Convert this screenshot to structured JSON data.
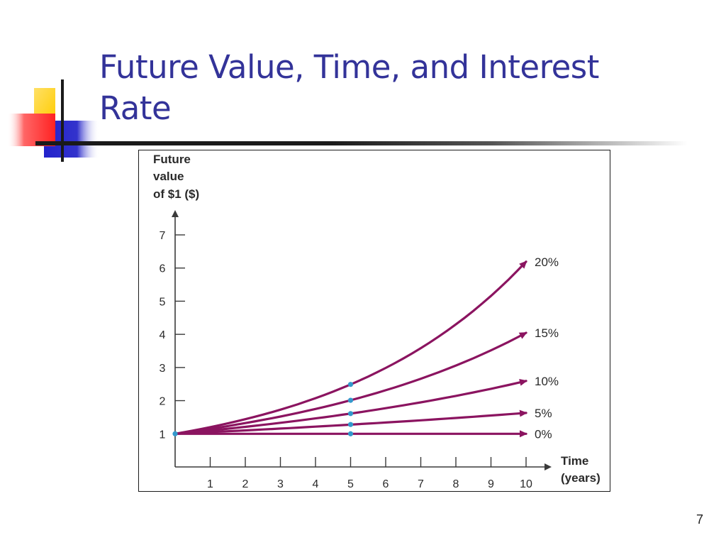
{
  "slide": {
    "title": "Future Value, Time, and Interest Rate",
    "page_number": "7"
  },
  "colors": {
    "title": "#333399",
    "curve": "#8b1460",
    "point": "#3399cc",
    "deco_yellow": "#ffcc00",
    "deco_blue": "#3333cc",
    "deco_red": "#ff3333"
  },
  "chart_data": {
    "type": "line",
    "ylabel": [
      "Future",
      "value",
      "of $1 ($)"
    ],
    "xlabel": [
      "Time",
      "(years)"
    ],
    "xlim": [
      0,
      10
    ],
    "ylim": [
      0,
      7
    ],
    "x_ticks": [
      1,
      2,
      3,
      4,
      5,
      6,
      7,
      8,
      9,
      10
    ],
    "y_ticks": [
      1,
      2,
      3,
      4,
      5,
      6,
      7
    ],
    "grid": false,
    "legend": "labels at end of each line (right)",
    "x": [
      0,
      5,
      10
    ],
    "series": [
      {
        "name": "0%",
        "rate": 0.0,
        "values": [
          1.0,
          1.0,
          1.0
        ]
      },
      {
        "name": "5%",
        "rate": 0.05,
        "values": [
          1.0,
          1.28,
          1.63
        ]
      },
      {
        "name": "10%",
        "rate": 0.1,
        "values": [
          1.0,
          1.61,
          2.59
        ]
      },
      {
        "name": "15%",
        "rate": 0.15,
        "values": [
          1.0,
          2.01,
          4.05
        ]
      },
      {
        "name": "20%",
        "rate": 0.2,
        "values": [
          1.0,
          2.49,
          6.19
        ]
      }
    ]
  }
}
